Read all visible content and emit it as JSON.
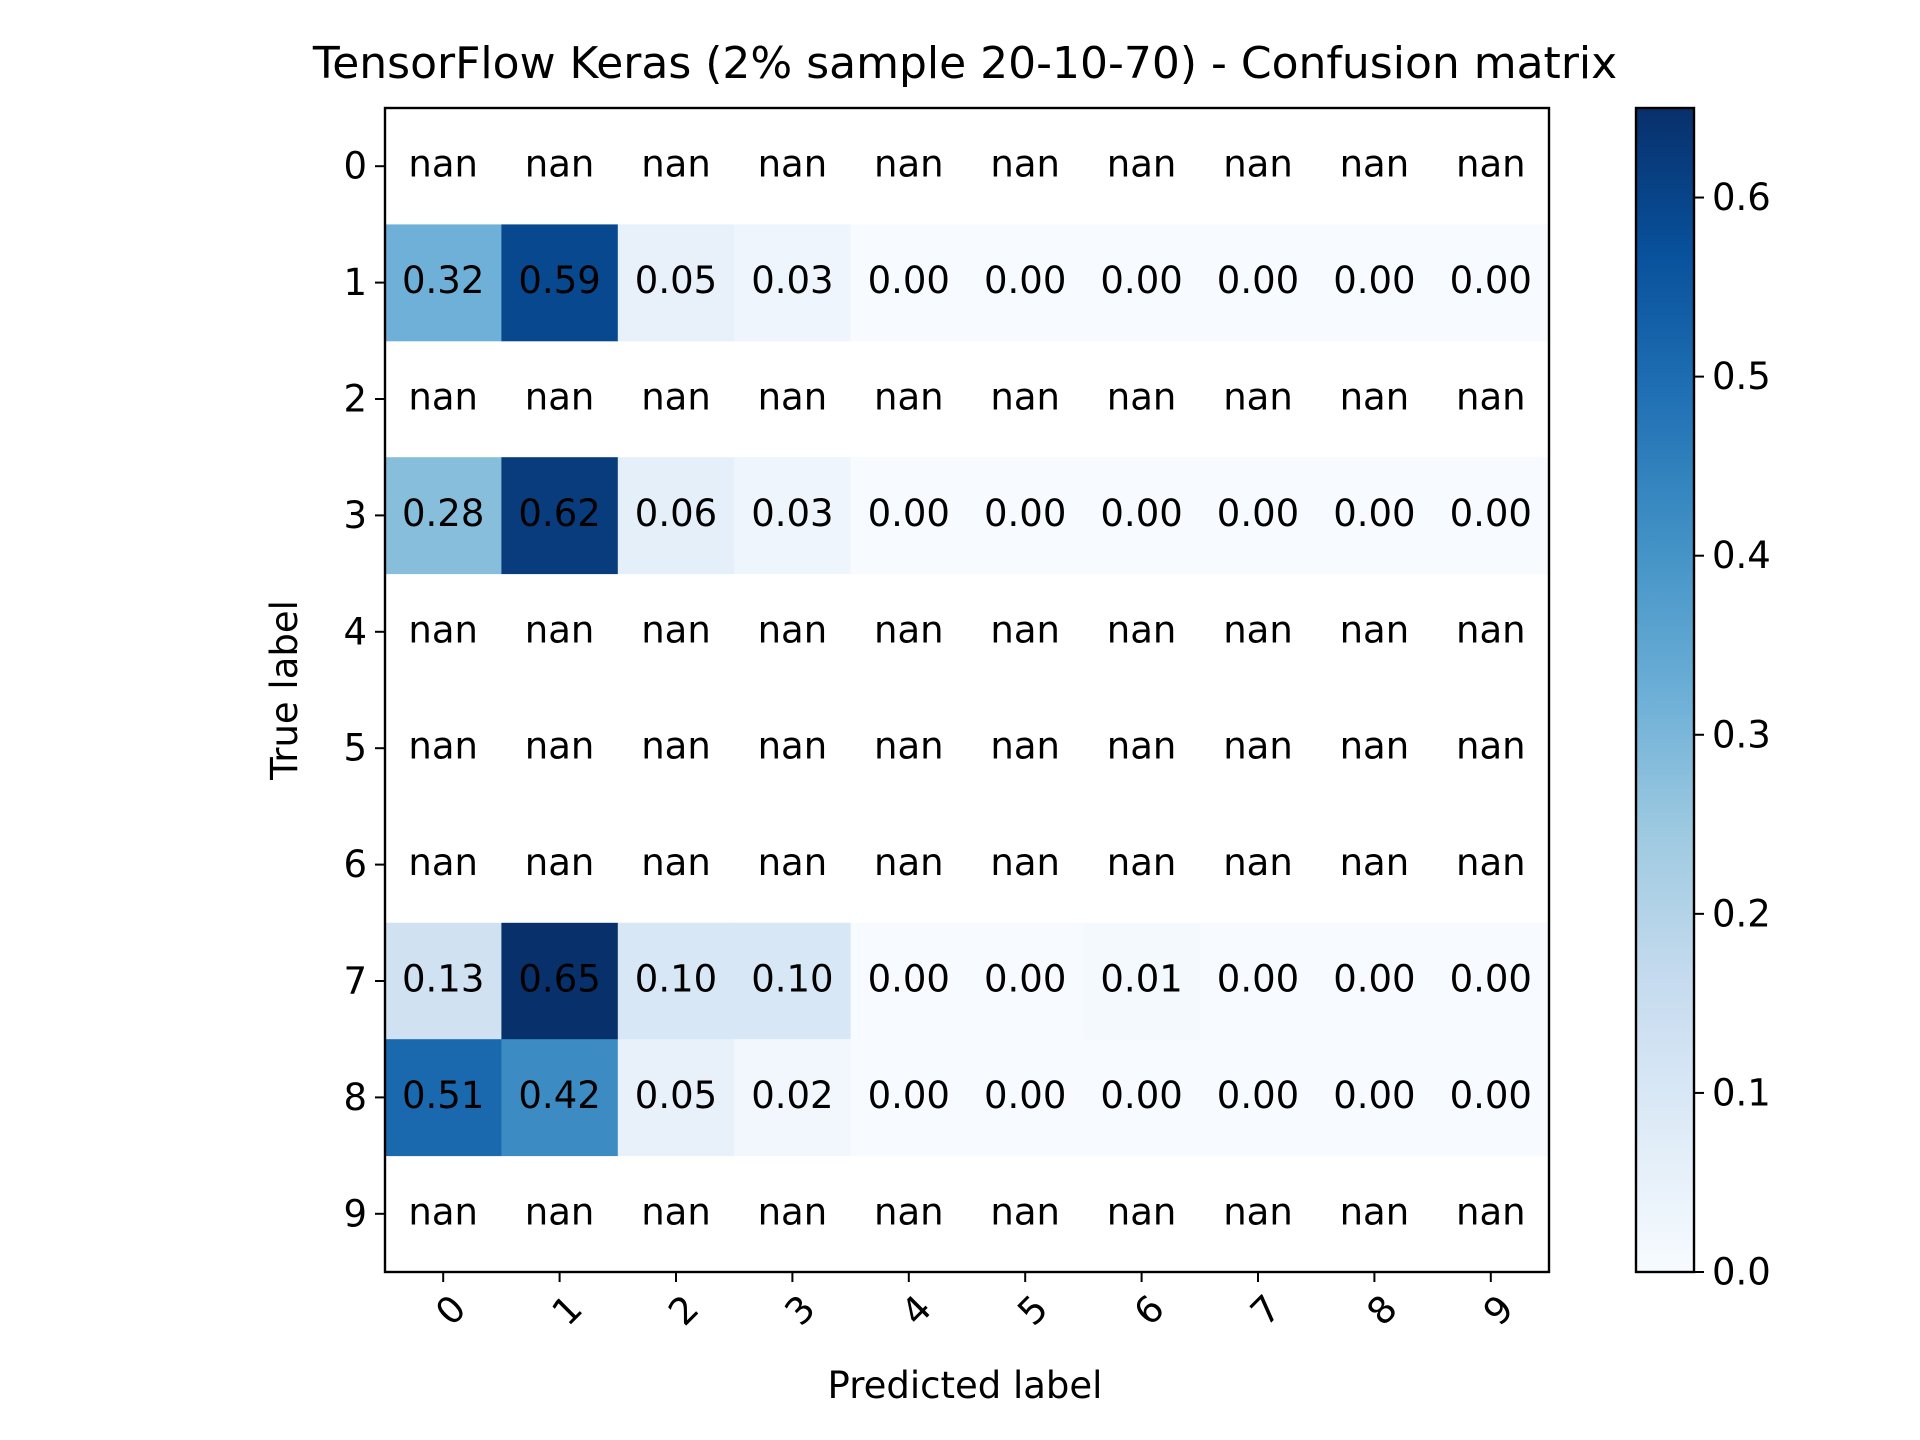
{
  "chart_data": {
    "type": "heatmap",
    "title": "TensorFlow Keras (2% sample 20-10-70) - Confusion matrix",
    "xlabel": "Predicted label",
    "ylabel": "True label",
    "x_categories": [
      "0",
      "1",
      "2",
      "3",
      "4",
      "5",
      "6",
      "7",
      "8",
      "9"
    ],
    "y_categories": [
      "0",
      "1",
      "2",
      "3",
      "4",
      "5",
      "6",
      "7",
      "8",
      "9"
    ],
    "values": [
      [
        null,
        null,
        null,
        null,
        null,
        null,
        null,
        null,
        null,
        null
      ],
      [
        0.32,
        0.59,
        0.05,
        0.03,
        0.0,
        0.0,
        0.0,
        0.0,
        0.0,
        0.0
      ],
      [
        null,
        null,
        null,
        null,
        null,
        null,
        null,
        null,
        null,
        null
      ],
      [
        0.28,
        0.62,
        0.06,
        0.03,
        0.0,
        0.0,
        0.0,
        0.0,
        0.0,
        0.0
      ],
      [
        null,
        null,
        null,
        null,
        null,
        null,
        null,
        null,
        null,
        null
      ],
      [
        null,
        null,
        null,
        null,
        null,
        null,
        null,
        null,
        null,
        null
      ],
      [
        null,
        null,
        null,
        null,
        null,
        null,
        null,
        null,
        null,
        null
      ],
      [
        0.13,
        0.65,
        0.1,
        0.1,
        0.0,
        0.0,
        0.01,
        0.0,
        0.0,
        0.0
      ],
      [
        0.51,
        0.42,
        0.05,
        0.02,
        0.0,
        0.0,
        0.0,
        0.0,
        0.0,
        0.0
      ],
      [
        null,
        null,
        null,
        null,
        null,
        null,
        null,
        null,
        null,
        null
      ]
    ],
    "missing_label": "nan",
    "colormap": "Blues",
    "color_range": [
      0.0,
      0.65
    ],
    "colorbar_ticks": [
      "0.0",
      "0.1",
      "0.2",
      "0.3",
      "0.4",
      "0.5",
      "0.6"
    ],
    "x_tick_rotation": 45,
    "legend": "colorbar-right",
    "grid": false
  }
}
